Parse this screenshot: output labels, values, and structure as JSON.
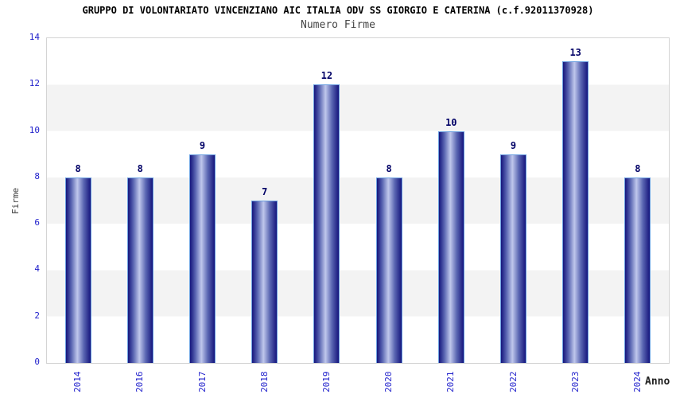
{
  "chart_data": {
    "type": "bar",
    "title": "GRUPPO DI VOLONTARIATO VINCENZIANO AIC ITALIA ODV SS GIORGIO E CATERINA (c.f.92011370928)",
    "subtitle": "Numero Firme",
    "xlabel": "Anno",
    "ylabel": "Firme",
    "categories": [
      "2014",
      "2016",
      "2017",
      "2018",
      "2019",
      "2020",
      "2021",
      "2022",
      "2023",
      "2024"
    ],
    "values": [
      8,
      8,
      9,
      7,
      12,
      8,
      10,
      9,
      13,
      8
    ],
    "ylim": [
      0,
      14
    ],
    "yticks": [
      0,
      2,
      4,
      6,
      8,
      10,
      12,
      14
    ],
    "grid": "alternating horizontal bands every 2 units",
    "legend": "none",
    "bar_value_labels": true
  },
  "colors": {
    "background": "#ffffff",
    "title": "#000000",
    "subtitle": "#444444",
    "tick_label": "#2222cc",
    "value_label": "#000066",
    "axis_label_y": "#3a3a3a",
    "axis_label_x": "#222222",
    "plot_border": "#d4d4d4",
    "band_white": "#ffffff",
    "band_gray": "#f3f3f3",
    "bar_border": "#6a9fe0",
    "bar_edge_dark": "#15157d",
    "bar_mid": "#5a66b2",
    "bar_highlight": "#bfc7ec"
  }
}
